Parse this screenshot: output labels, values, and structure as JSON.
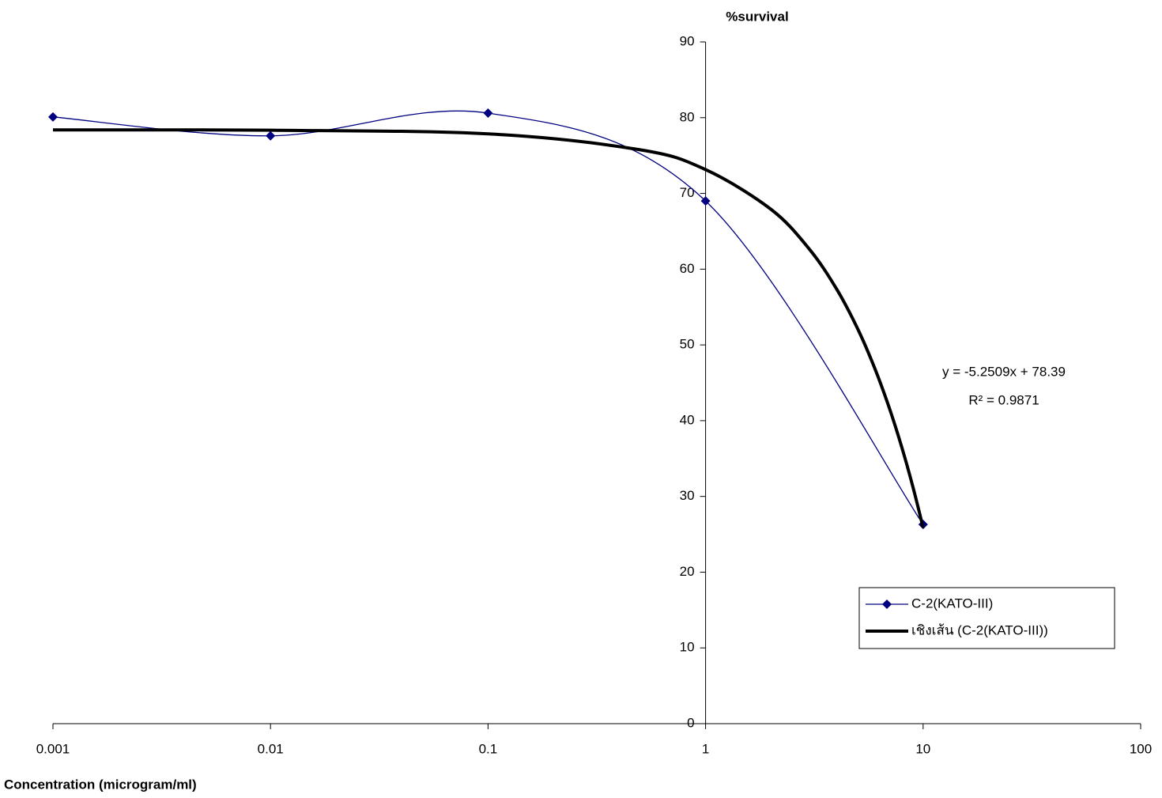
{
  "chart_data": {
    "type": "line",
    "y_title": "%survival",
    "x_title": "Concentration (microgram/ml)",
    "annotations": [
      "y = -5.2509x + 78.39",
      "R² = 0.9871"
    ],
    "xlim": [
      0.001,
      100
    ],
    "xticks": [
      0.001,
      0.01,
      0.1,
      1,
      10,
      100
    ],
    "x_log": true,
    "ylim": [
      0,
      90
    ],
    "yticks": [
      0,
      10,
      20,
      30,
      40,
      50,
      60,
      70,
      80,
      90
    ],
    "y_axis_at_x": 1,
    "legend": "right",
    "series": [
      {
        "name": "C-2(KATO-III)",
        "color": "#000080",
        "smooth": true,
        "marker": "diamond",
        "x": [
          0.001,
          0.01,
          0.1,
          1,
          10
        ],
        "values": [
          80.1,
          77.6,
          80.6,
          69.0,
          26.3
        ]
      },
      {
        "name": "เชิงเส้น (C-2(KATO-III))",
        "color": "#000000",
        "smooth": true,
        "marker": "none",
        "x": [
          0.001,
          0.01,
          0.1,
          0.5,
          1,
          2,
          3,
          4,
          5,
          6,
          7,
          8,
          9,
          10
        ],
        "values": [
          78.39,
          78.34,
          77.86,
          75.76,
          73.14,
          67.89,
          62.64,
          57.39,
          52.14,
          46.88,
          41.63,
          36.38,
          31.13,
          25.88
        ]
      }
    ]
  }
}
